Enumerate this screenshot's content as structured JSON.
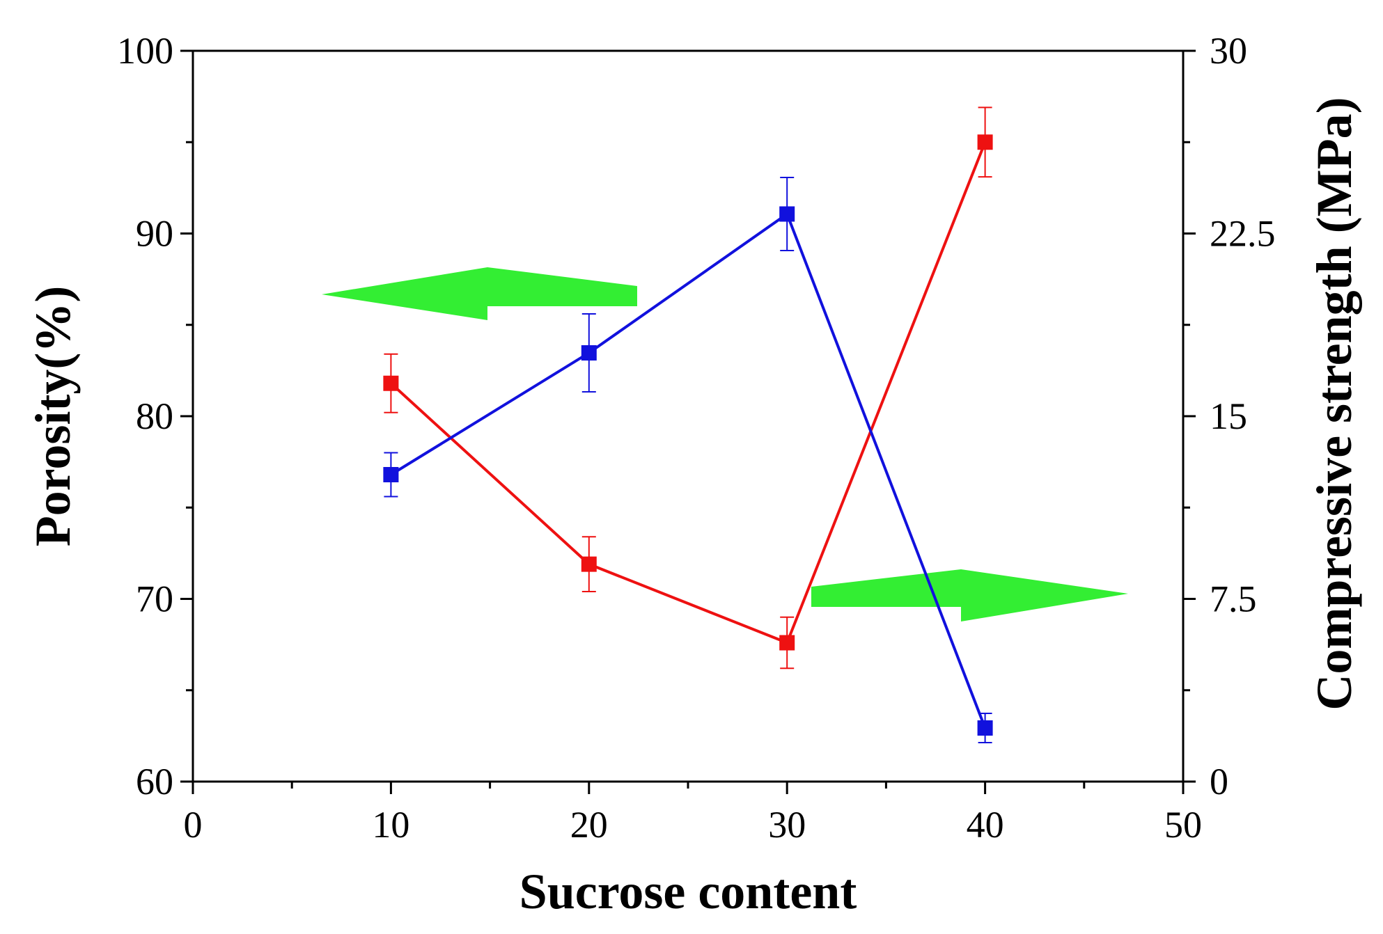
{
  "chart_data": {
    "type": "line",
    "xlabel": "Sucrose content",
    "ylabel": "Porosity(%)",
    "y2label": "Compressive strength (MPa)",
    "xlim": [
      0,
      50
    ],
    "ylim": [
      60,
      100
    ],
    "y2lim": [
      0,
      30
    ],
    "x_ticks": [
      0,
      10,
      20,
      30,
      40,
      50
    ],
    "y_ticks": [
      60,
      70,
      80,
      90,
      100
    ],
    "y2_ticks": [
      0,
      7.5,
      15,
      22.5,
      30
    ],
    "y2_tick_labels": [
      "0",
      "7.5",
      "15",
      "22.5",
      "30"
    ],
    "grid": false,
    "legend": "none",
    "annotations": [
      {
        "shape": "arrow-left",
        "points_to": "left-axis",
        "color": "#33ee33"
      },
      {
        "shape": "arrow-right",
        "points_to": "right-axis",
        "color": "#33ee33"
      }
    ],
    "series": [
      {
        "axis": "left",
        "color": "#ee1111",
        "x": [
          10,
          20,
          30,
          40
        ],
        "values": [
          81.8,
          71.9,
          67.6,
          95.0
        ],
        "errors": [
          1.6,
          1.5,
          1.4,
          1.9
        ]
      },
      {
        "axis": "right",
        "color": "#1111dd",
        "x": [
          10,
          20,
          30,
          40
        ],
        "values": [
          12.6,
          17.6,
          23.3,
          2.2
        ],
        "errors": [
          0.9,
          1.6,
          1.5,
          0.6
        ]
      }
    ]
  }
}
